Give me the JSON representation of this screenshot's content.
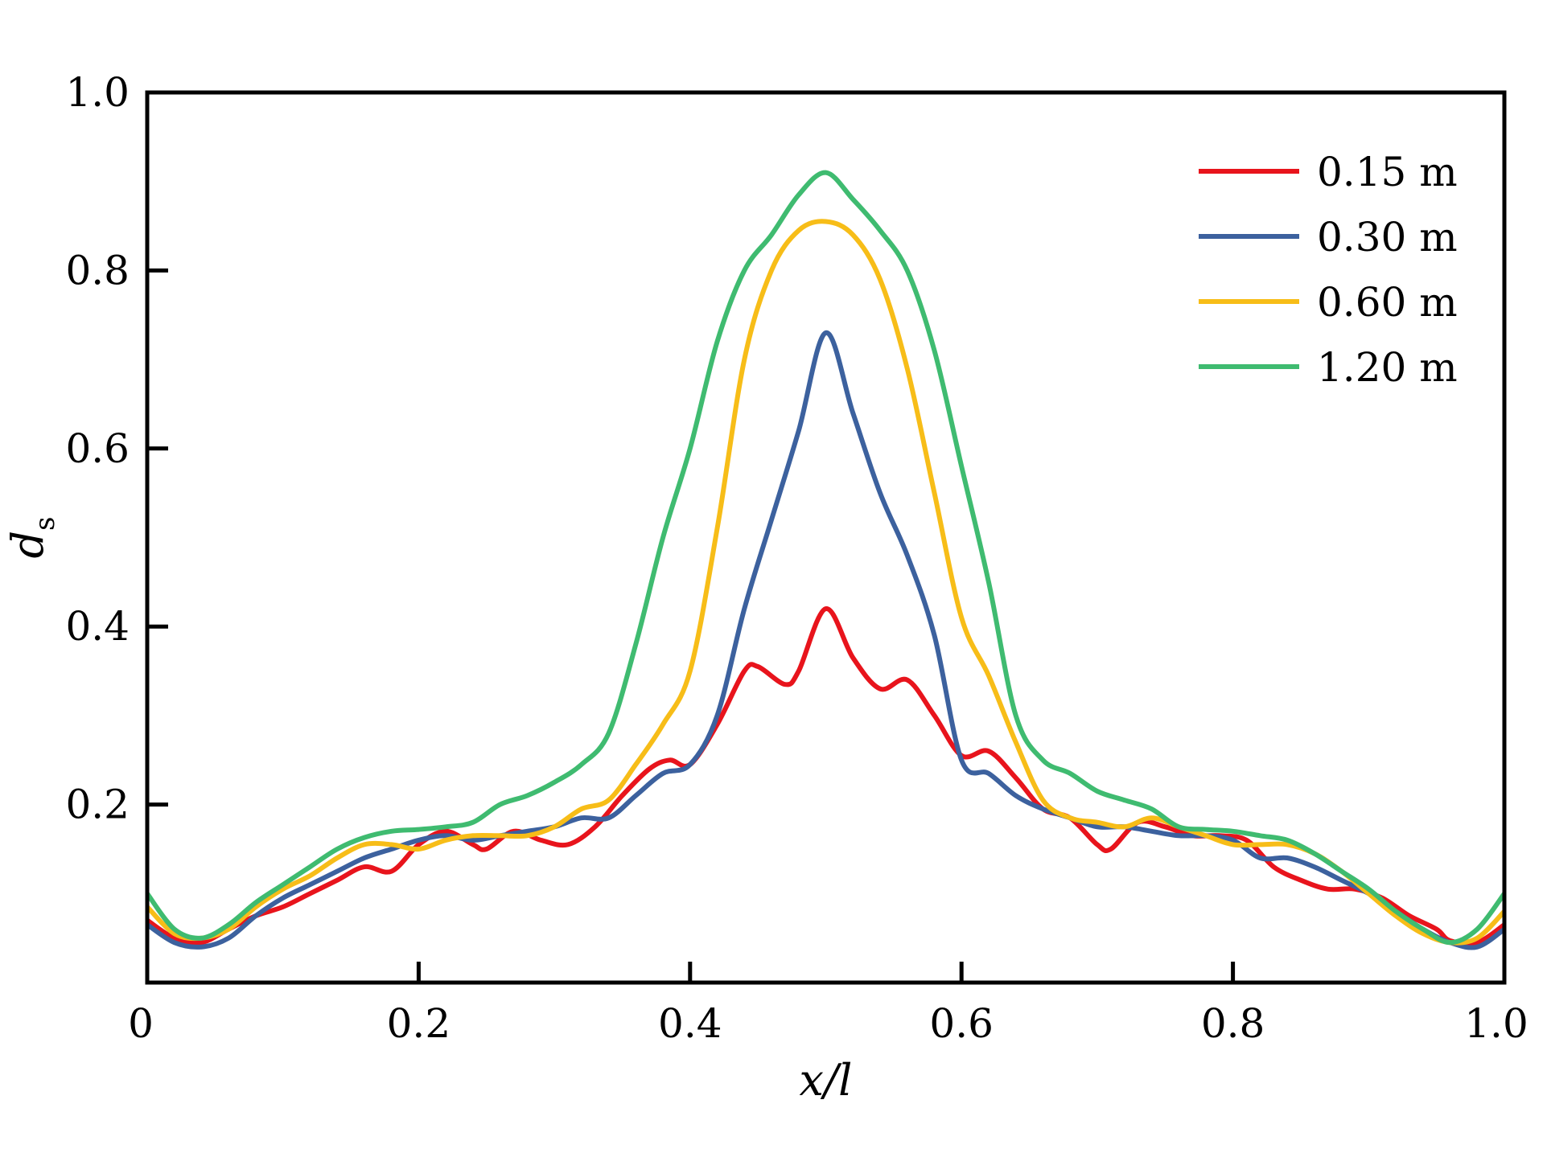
{
  "chart_data": {
    "type": "line",
    "xlabel": "x/l",
    "ylabel_main": "d",
    "ylabel_sub": "s",
    "xlim": [
      0,
      1.0
    ],
    "ylim": [
      0,
      1.0
    ],
    "x_ticks": [
      0,
      0.2,
      0.4,
      0.6,
      0.8,
      1.0
    ],
    "x_tick_labels": [
      "0",
      "0.2",
      "0.4",
      "0.6",
      "0.8",
      "1.0"
    ],
    "y_ticks": [
      0.2,
      0.4,
      0.6,
      0.8,
      1.0
    ],
    "y_tick_labels": [
      "0.2",
      "0.4",
      "0.6",
      "0.8",
      "1.0"
    ],
    "grid": false,
    "legend_position": "top-right",
    "series": [
      {
        "name": "0.15 m",
        "color": "#e8141c",
        "points": [
          [
            0,
            0.07
          ],
          [
            0.02,
            0.05
          ],
          [
            0.04,
            0.045
          ],
          [
            0.06,
            0.06
          ],
          [
            0.08,
            0.075
          ],
          [
            0.1,
            0.085
          ],
          [
            0.12,
            0.1
          ],
          [
            0.14,
            0.115
          ],
          [
            0.16,
            0.13
          ],
          [
            0.18,
            0.125
          ],
          [
            0.2,
            0.155
          ],
          [
            0.22,
            0.17
          ],
          [
            0.24,
            0.155
          ],
          [
            0.25,
            0.15
          ],
          [
            0.27,
            0.17
          ],
          [
            0.29,
            0.16
          ],
          [
            0.31,
            0.155
          ],
          [
            0.33,
            0.175
          ],
          [
            0.35,
            0.21
          ],
          [
            0.37,
            0.24
          ],
          [
            0.385,
            0.25
          ],
          [
            0.4,
            0.245
          ],
          [
            0.42,
            0.29
          ],
          [
            0.44,
            0.35
          ],
          [
            0.45,
            0.355
          ],
          [
            0.47,
            0.335
          ],
          [
            0.48,
            0.35
          ],
          [
            0.5,
            0.42
          ],
          [
            0.52,
            0.365
          ],
          [
            0.54,
            0.33
          ],
          [
            0.56,
            0.34
          ],
          [
            0.58,
            0.3
          ],
          [
            0.6,
            0.255
          ],
          [
            0.62,
            0.26
          ],
          [
            0.64,
            0.23
          ],
          [
            0.66,
            0.195
          ],
          [
            0.68,
            0.185
          ],
          [
            0.7,
            0.155
          ],
          [
            0.71,
            0.15
          ],
          [
            0.73,
            0.18
          ],
          [
            0.75,
            0.175
          ],
          [
            0.77,
            0.165
          ],
          [
            0.79,
            0.165
          ],
          [
            0.81,
            0.16
          ],
          [
            0.83,
            0.13
          ],
          [
            0.85,
            0.115
          ],
          [
            0.87,
            0.105
          ],
          [
            0.89,
            0.105
          ],
          [
            0.91,
            0.095
          ],
          [
            0.93,
            0.075
          ],
          [
            0.95,
            0.06
          ],
          [
            0.96,
            0.047
          ],
          [
            0.98,
            0.045
          ],
          [
            1.0,
            0.065
          ]
        ]
      },
      {
        "name": "0.30 m",
        "color": "#3c619e",
        "points": [
          [
            0,
            0.065
          ],
          [
            0.02,
            0.045
          ],
          [
            0.04,
            0.04
          ],
          [
            0.06,
            0.05
          ],
          [
            0.08,
            0.075
          ],
          [
            0.1,
            0.095
          ],
          [
            0.12,
            0.11
          ],
          [
            0.14,
            0.125
          ],
          [
            0.16,
            0.14
          ],
          [
            0.18,
            0.15
          ],
          [
            0.2,
            0.16
          ],
          [
            0.22,
            0.165
          ],
          [
            0.24,
            0.16
          ],
          [
            0.26,
            0.165
          ],
          [
            0.28,
            0.17
          ],
          [
            0.3,
            0.175
          ],
          [
            0.32,
            0.185
          ],
          [
            0.34,
            0.185
          ],
          [
            0.36,
            0.21
          ],
          [
            0.38,
            0.235
          ],
          [
            0.4,
            0.245
          ],
          [
            0.42,
            0.3
          ],
          [
            0.44,
            0.42
          ],
          [
            0.46,
            0.52
          ],
          [
            0.48,
            0.62
          ],
          [
            0.5,
            0.73
          ],
          [
            0.52,
            0.64
          ],
          [
            0.54,
            0.55
          ],
          [
            0.56,
            0.48
          ],
          [
            0.58,
            0.39
          ],
          [
            0.6,
            0.25
          ],
          [
            0.62,
            0.235
          ],
          [
            0.64,
            0.21
          ],
          [
            0.66,
            0.195
          ],
          [
            0.68,
            0.185
          ],
          [
            0.7,
            0.175
          ],
          [
            0.72,
            0.175
          ],
          [
            0.74,
            0.17
          ],
          [
            0.76,
            0.165
          ],
          [
            0.78,
            0.165
          ],
          [
            0.8,
            0.16
          ],
          [
            0.82,
            0.14
          ],
          [
            0.84,
            0.14
          ],
          [
            0.86,
            0.13
          ],
          [
            0.88,
            0.115
          ],
          [
            0.9,
            0.1
          ],
          [
            0.92,
            0.08
          ],
          [
            0.94,
            0.06
          ],
          [
            0.96,
            0.045
          ],
          [
            0.98,
            0.04
          ],
          [
            1.0,
            0.06
          ]
        ]
      },
      {
        "name": "0.60 m",
        "color": "#f7bd18",
        "points": [
          [
            0,
            0.085
          ],
          [
            0.02,
            0.055
          ],
          [
            0.04,
            0.05
          ],
          [
            0.06,
            0.06
          ],
          [
            0.08,
            0.085
          ],
          [
            0.1,
            0.105
          ],
          [
            0.12,
            0.12
          ],
          [
            0.14,
            0.14
          ],
          [
            0.16,
            0.155
          ],
          [
            0.18,
            0.155
          ],
          [
            0.2,
            0.15
          ],
          [
            0.22,
            0.16
          ],
          [
            0.24,
            0.165
          ],
          [
            0.26,
            0.165
          ],
          [
            0.28,
            0.165
          ],
          [
            0.3,
            0.175
          ],
          [
            0.32,
            0.195
          ],
          [
            0.34,
            0.205
          ],
          [
            0.36,
            0.245
          ],
          [
            0.38,
            0.29
          ],
          [
            0.4,
            0.35
          ],
          [
            0.42,
            0.51
          ],
          [
            0.44,
            0.7
          ],
          [
            0.46,
            0.8
          ],
          [
            0.48,
            0.845
          ],
          [
            0.5,
            0.855
          ],
          [
            0.52,
            0.84
          ],
          [
            0.54,
            0.79
          ],
          [
            0.56,
            0.69
          ],
          [
            0.58,
            0.55
          ],
          [
            0.6,
            0.41
          ],
          [
            0.62,
            0.345
          ],
          [
            0.64,
            0.27
          ],
          [
            0.66,
            0.205
          ],
          [
            0.68,
            0.185
          ],
          [
            0.7,
            0.18
          ],
          [
            0.72,
            0.175
          ],
          [
            0.74,
            0.185
          ],
          [
            0.76,
            0.175
          ],
          [
            0.78,
            0.165
          ],
          [
            0.8,
            0.155
          ],
          [
            0.82,
            0.155
          ],
          [
            0.84,
            0.155
          ],
          [
            0.86,
            0.145
          ],
          [
            0.88,
            0.125
          ],
          [
            0.9,
            0.1
          ],
          [
            0.92,
            0.075
          ],
          [
            0.94,
            0.055
          ],
          [
            0.96,
            0.045
          ],
          [
            0.98,
            0.05
          ],
          [
            1.0,
            0.08
          ]
        ]
      },
      {
        "name": "1.20 m",
        "color": "#3fbb70",
        "points": [
          [
            0,
            0.1
          ],
          [
            0.02,
            0.06
          ],
          [
            0.04,
            0.05
          ],
          [
            0.06,
            0.065
          ],
          [
            0.08,
            0.09
          ],
          [
            0.1,
            0.11
          ],
          [
            0.12,
            0.13
          ],
          [
            0.14,
            0.15
          ],
          [
            0.16,
            0.163
          ],
          [
            0.18,
            0.17
          ],
          [
            0.2,
            0.172
          ],
          [
            0.22,
            0.175
          ],
          [
            0.24,
            0.18
          ],
          [
            0.26,
            0.2
          ],
          [
            0.28,
            0.21
          ],
          [
            0.3,
            0.225
          ],
          [
            0.32,
            0.245
          ],
          [
            0.34,
            0.28
          ],
          [
            0.36,
            0.38
          ],
          [
            0.38,
            0.5
          ],
          [
            0.4,
            0.6
          ],
          [
            0.42,
            0.72
          ],
          [
            0.44,
            0.8
          ],
          [
            0.46,
            0.84
          ],
          [
            0.48,
            0.885
          ],
          [
            0.5,
            0.91
          ],
          [
            0.52,
            0.88
          ],
          [
            0.54,
            0.845
          ],
          [
            0.56,
            0.8
          ],
          [
            0.58,
            0.71
          ],
          [
            0.6,
            0.58
          ],
          [
            0.62,
            0.45
          ],
          [
            0.64,
            0.3
          ],
          [
            0.66,
            0.25
          ],
          [
            0.68,
            0.235
          ],
          [
            0.7,
            0.215
          ],
          [
            0.72,
            0.205
          ],
          [
            0.74,
            0.195
          ],
          [
            0.76,
            0.175
          ],
          [
            0.78,
            0.172
          ],
          [
            0.8,
            0.17
          ],
          [
            0.82,
            0.165
          ],
          [
            0.84,
            0.16
          ],
          [
            0.86,
            0.145
          ],
          [
            0.88,
            0.125
          ],
          [
            0.9,
            0.105
          ],
          [
            0.92,
            0.08
          ],
          [
            0.94,
            0.06
          ],
          [
            0.96,
            0.045
          ],
          [
            0.98,
            0.06
          ],
          [
            1.0,
            0.1
          ]
        ]
      }
    ]
  }
}
